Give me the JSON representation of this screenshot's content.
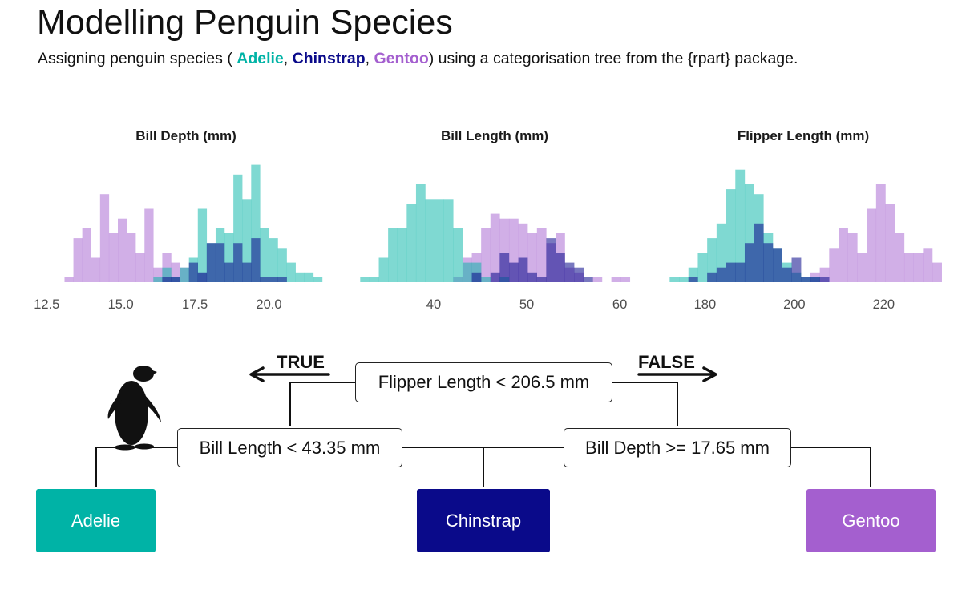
{
  "header": {
    "title": "Modelling Penguin Species",
    "subtitle_prefix": "Assigning penguin species ( ",
    "subtitle_sep1": ", ",
    "subtitle_sep2": ", ",
    "subtitle_suffix": ") using a categorisation tree from the {rpart} package."
  },
  "species": [
    {
      "name": "Adelie",
      "color": "#00b3a6"
    },
    {
      "name": "Chinstrap",
      "color": "#0a0a8a"
    },
    {
      "name": "Gentoo",
      "color": "#a45fcf"
    }
  ],
  "chart_data": [
    {
      "type": "bar",
      "chart_style": "overlapping histogram",
      "title": "Bill Depth (mm)",
      "xlabel": "",
      "ylabel": "",
      "xlim": [
        12.6,
        21.8
      ],
      "xticks": [
        "12.5",
        "15.0",
        "17.5",
        "20.0"
      ],
      "xtick_values": [
        12.5,
        15.0,
        17.5,
        20.0
      ],
      "bin_start": 13.1,
      "bin_width": 0.3,
      "series": [
        {
          "name": "Adelie",
          "color": "#00b3a6",
          "values": [
            0,
            0,
            0,
            0,
            0,
            0,
            0,
            0,
            0,
            0,
            1,
            3,
            1,
            3,
            5,
            15,
            8,
            11,
            10,
            22,
            17,
            24,
            11,
            9,
            7,
            4,
            2,
            2,
            1
          ]
        },
        {
          "name": "Chinstrap",
          "color": "#0a0a8a",
          "values": [
            0,
            0,
            0,
            0,
            0,
            0,
            0,
            0,
            0,
            0,
            0,
            1,
            1,
            0,
            4,
            2,
            8,
            8,
            4,
            8,
            4,
            9,
            1,
            1,
            1,
            0,
            0,
            0,
            0
          ]
        },
        {
          "name": "Gentoo",
          "color": "#a45fcf",
          "values": [
            1,
            9,
            11,
            5,
            18,
            10,
            13,
            10,
            6,
            15,
            3,
            6,
            4,
            3,
            0,
            2,
            0,
            0,
            0,
            0,
            0,
            0,
            0,
            0,
            0,
            0,
            0,
            0,
            0
          ]
        }
      ]
    },
    {
      "type": "bar",
      "chart_style": "overlapping histogram",
      "title": "Bill Length (mm)",
      "xlabel": "",
      "ylabel": "",
      "xlim": [
        31.9,
        61.2
      ],
      "xticks": [
        "40",
        "50",
        "60"
      ],
      "xtick_values": [
        40,
        50,
        60
      ],
      "bin_start": 32.1,
      "bin_width": 1.0,
      "series": [
        {
          "name": "Adelie",
          "color": "#00b3a6",
          "values": [
            1,
            1,
            5,
            11,
            11,
            16,
            20,
            17,
            17,
            17,
            11,
            4,
            4,
            1,
            0,
            1,
            0,
            0,
            0,
            0,
            0,
            0,
            0,
            0,
            0,
            0,
            0,
            0,
            0
          ]
        },
        {
          "name": "Chinstrap",
          "color": "#0a0a8a",
          "values": [
            0,
            0,
            0,
            0,
            0,
            0,
            0,
            0,
            0,
            0,
            0,
            0,
            2,
            0,
            2,
            6,
            4,
            5,
            2,
            1,
            9,
            6,
            4,
            3,
            1,
            0,
            0,
            0,
            0
          ]
        },
        {
          "name": "Gentoo",
          "color": "#a45fcf",
          "values": [
            0,
            0,
            0,
            0,
            0,
            0,
            0,
            0,
            0,
            0,
            1,
            5,
            6,
            11,
            14,
            13,
            13,
            12,
            10,
            11,
            8,
            10,
            3,
            2,
            0,
            1,
            0,
            1,
            1
          ]
        }
      ]
    },
    {
      "type": "bar",
      "chart_style": "overlapping histogram",
      "title": "Flipper Length (mm)",
      "xlabel": "",
      "ylabel": "",
      "xlim": [
        171.5,
        232.5
      ],
      "xticks": [
        "180",
        "200",
        "220"
      ],
      "xtick_values": [
        180,
        200,
        220
      ],
      "bin_start": 172.1,
      "bin_width": 2.1,
      "series": [
        {
          "name": "Adelie",
          "color": "#00b3a6",
          "values": [
            1,
            1,
            3,
            6,
            9,
            12,
            19,
            23,
            20,
            18,
            10,
            7,
            4,
            2,
            1,
            1,
            0,
            0,
            0,
            0,
            0,
            0,
            0,
            0,
            0,
            0,
            0,
            0,
            0
          ]
        },
        {
          "name": "Chinstrap",
          "color": "#0a0a8a",
          "values": [
            0,
            0,
            1,
            0,
            2,
            3,
            4,
            4,
            8,
            12,
            8,
            7,
            3,
            5,
            1,
            1,
            1,
            0,
            0,
            0,
            0,
            0,
            0,
            0,
            0,
            0,
            0,
            0,
            0
          ]
        },
        {
          "name": "Gentoo",
          "color": "#a45fcf",
          "values": [
            0,
            0,
            0,
            0,
            0,
            0,
            0,
            0,
            0,
            0,
            0,
            0,
            0,
            0,
            0,
            2,
            3,
            7,
            11,
            10,
            6,
            15,
            20,
            16,
            10,
            6,
            6,
            7,
            4
          ]
        }
      ]
    }
  ],
  "tree": {
    "true_label": "TRUE",
    "false_label": "FALSE",
    "root": "Flipper Length < 206.5 mm",
    "left_split": "Bill Length < 43.35 mm",
    "right_split": "Bill Depth >= 17.65 mm",
    "leaves": [
      "Adelie",
      "Chinstrap",
      "Gentoo"
    ]
  }
}
